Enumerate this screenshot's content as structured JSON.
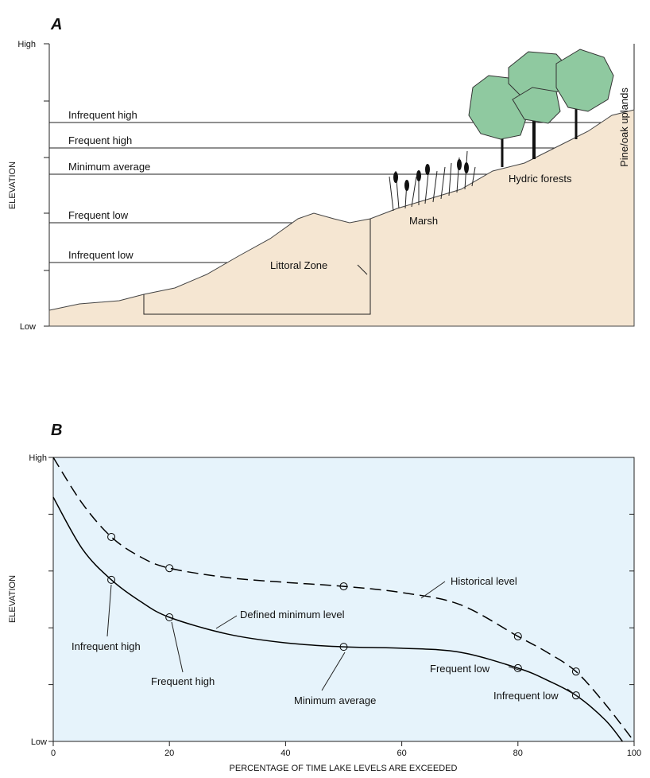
{
  "panel_a": {
    "label": "A",
    "y_axis_label": "ELEVATION",
    "y_high": "High",
    "y_low": "Low",
    "levels": [
      "Infrequent high",
      "Frequent high",
      "Minimum average",
      "Frequent low",
      "Infrequent low"
    ],
    "zones": [
      "Littoral Zone",
      "Marsh",
      "Hydric forests",
      "Pine/oak uplands"
    ]
  },
  "chart_data": {
    "type": "line",
    "panel_label": "B",
    "x_label": "PERCENTAGE OF TIME LAKE LEVELS ARE EXCEEDED",
    "y_label": "ELEVATION",
    "xlim": [
      0,
      100
    ],
    "ylim": [
      0,
      100
    ],
    "xticks": [
      0,
      20,
      40,
      60,
      80,
      100
    ],
    "yticks": [
      {
        "value": 0,
        "label": "Low"
      },
      {
        "value": 100,
        "label": "High"
      }
    ],
    "background": "#e6f3fb",
    "series": [
      {
        "name": "Historical level",
        "color": "#000000",
        "dashed": true,
        "x": [
          0,
          5,
          10,
          15,
          20,
          30,
          40,
          50,
          60,
          70,
          80,
          85,
          90,
          95,
          100
        ],
        "values": [
          100,
          83.8,
          72,
          65,
          61,
          57.7,
          56,
          54.6,
          52.4,
          48.2,
          37,
          31.4,
          24.6,
          13.2,
          0
        ],
        "points": {
          "x": [
            10,
            20,
            50,
            80,
            90
          ],
          "values": [
            72,
            61,
            54.6,
            37,
            24.6
          ]
        }
      },
      {
        "name": "Defined minimum level",
        "color": "#000000",
        "dashed": false,
        "x": [
          0,
          5,
          10,
          15,
          20,
          30,
          40,
          50,
          60,
          70,
          80,
          85,
          90,
          95,
          98
        ],
        "values": [
          86,
          67.8,
          56.9,
          49.3,
          43.7,
          37.8,
          34.7,
          33.3,
          32.8,
          31.4,
          25.8,
          21.6,
          16.2,
          7.6,
          0
        ],
        "points": {
          "x": [
            10,
            20,
            50,
            80,
            90
          ],
          "values": [
            56.9,
            43.7,
            33.3,
            25.8,
            16.2
          ]
        }
      }
    ],
    "annotations": [
      "Infrequent high",
      "Frequent high",
      "Minimum average",
      "Frequent low",
      "Infrequent low"
    ]
  }
}
